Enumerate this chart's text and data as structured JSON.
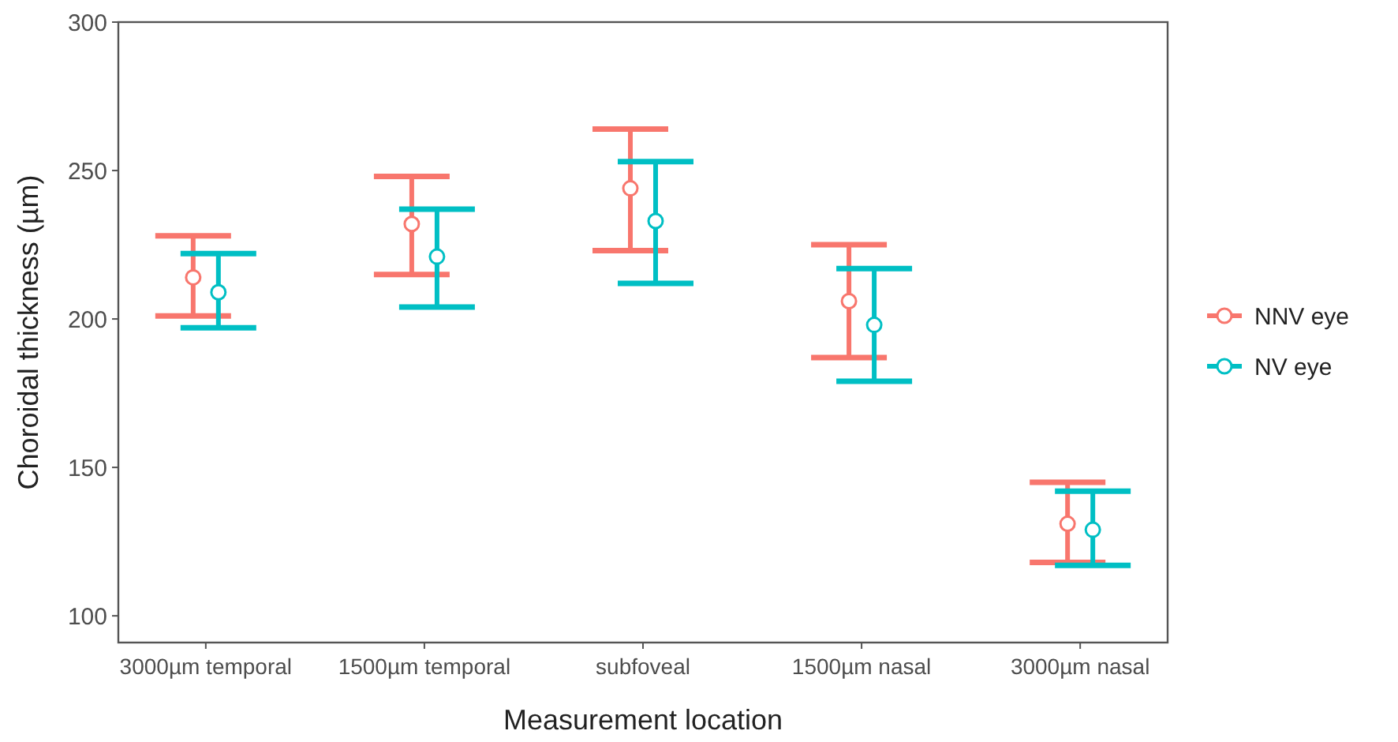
{
  "chart_data": {
    "type": "scatter",
    "xlabel": "Measurement location",
    "ylabel": "Choroidal thickness (µm)",
    "categories": [
      "3000µm temporal",
      "1500µm temporal",
      "subfoveal",
      "1500µm nasal",
      "3000µm nasal"
    ],
    "series": [
      {
        "name": "NNV eye",
        "color": "#f8766d",
        "values": [
          214,
          232,
          244,
          206,
          131
        ],
        "errors": [
          [
            201,
            228
          ],
          [
            215,
            248
          ],
          [
            223,
            264
          ],
          [
            187,
            225
          ],
          [
            118,
            145
          ]
        ]
      },
      {
        "name": "NV eye",
        "color": "#00bfc4",
        "values": [
          209,
          221,
          233,
          198,
          129
        ],
        "errors": [
          [
            197,
            222
          ],
          [
            204,
            237
          ],
          [
            212,
            253
          ],
          [
            179,
            217
          ],
          [
            117,
            142
          ]
        ]
      }
    ],
    "ylim": [
      91,
      300
    ],
    "yticks": [
      100,
      150,
      200,
      250,
      300
    ],
    "grid": false,
    "legend": "right",
    "marker": "circle"
  }
}
